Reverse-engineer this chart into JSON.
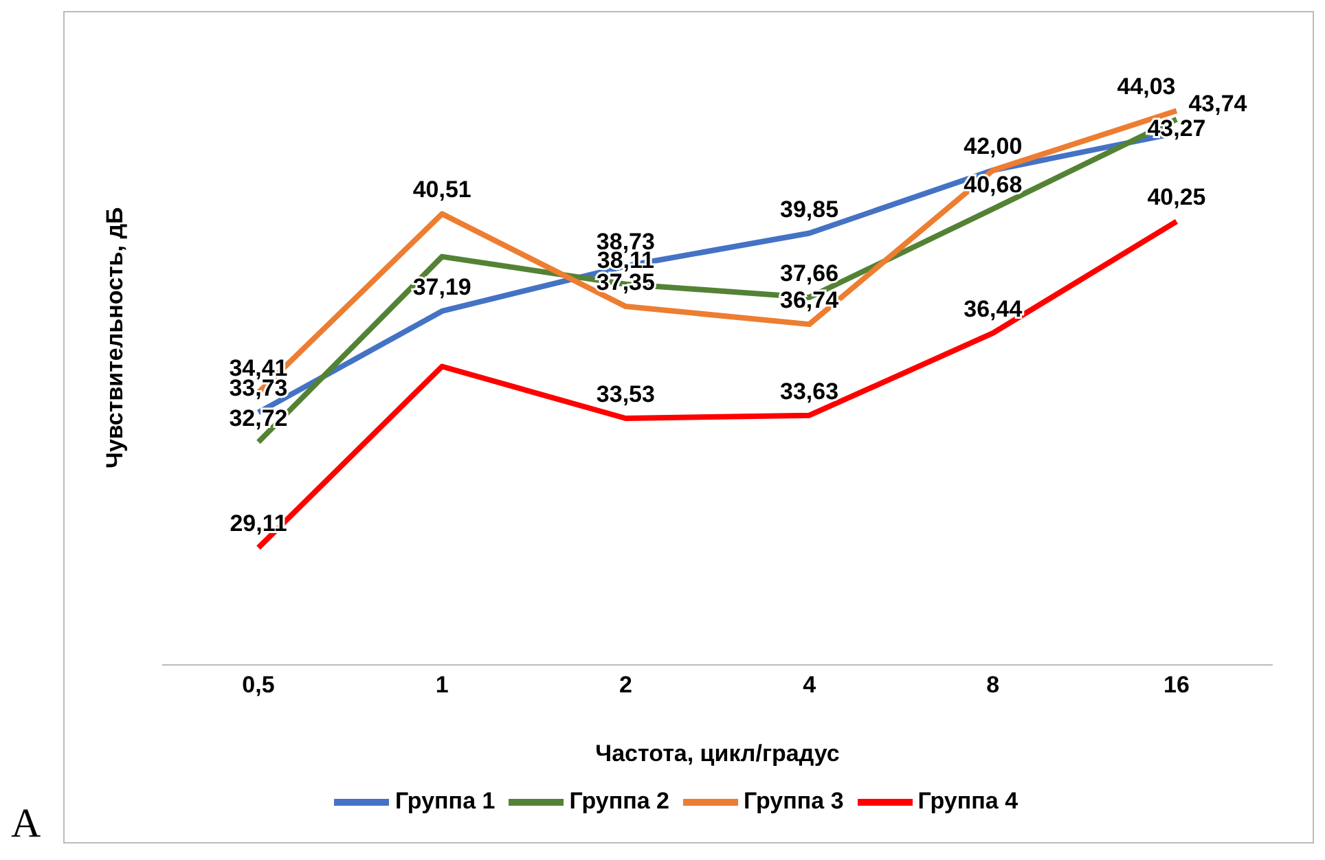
{
  "chart_data": {
    "type": "line",
    "xlabel": "Частота, цикл/градус",
    "ylabel": "Чувствительность, дБ",
    "categories": [
      "0,5",
      "1",
      "2",
      "4",
      "8",
      "16"
    ],
    "tick_labels": "x",
    "grid": false,
    "legend": "bottom",
    "marker": "none",
    "line_style": "solid",
    "annotations": [
      "A"
    ],
    "series": [
      {
        "name": "Группа 1",
        "color": "#4472c4",
        "values": [
          33.73,
          37.19,
          38.73,
          39.85,
          42.0,
          43.27
        ],
        "value_labels": [
          "33,73",
          "37,19",
          "38,73",
          "39,85",
          null,
          "43,27"
        ]
      },
      {
        "name": "Группа 2",
        "color": "#548235",
        "values": [
          32.72,
          39.05,
          38.11,
          37.66,
          40.68,
          43.74
        ],
        "value_labels": [
          "32,72",
          null,
          "38,11",
          "37,66",
          "40,68",
          "43,74"
        ]
      },
      {
        "name": "Группа 3",
        "color": "#ed7d31",
        "values": [
          34.41,
          40.51,
          37.35,
          36.74,
          42.0,
          44.03
        ],
        "value_labels": [
          "34,41",
          "40,51",
          "37,35",
          "36,74",
          "42,00",
          "44,03"
        ]
      },
      {
        "name": "Группа 4",
        "color": "#ff0000",
        "values": [
          29.11,
          35.3,
          33.53,
          33.63,
          36.44,
          40.25
        ],
        "value_labels": [
          "29,11",
          null,
          "33,53",
          "33,63",
          "36,44",
          "40,25"
        ]
      }
    ]
  }
}
